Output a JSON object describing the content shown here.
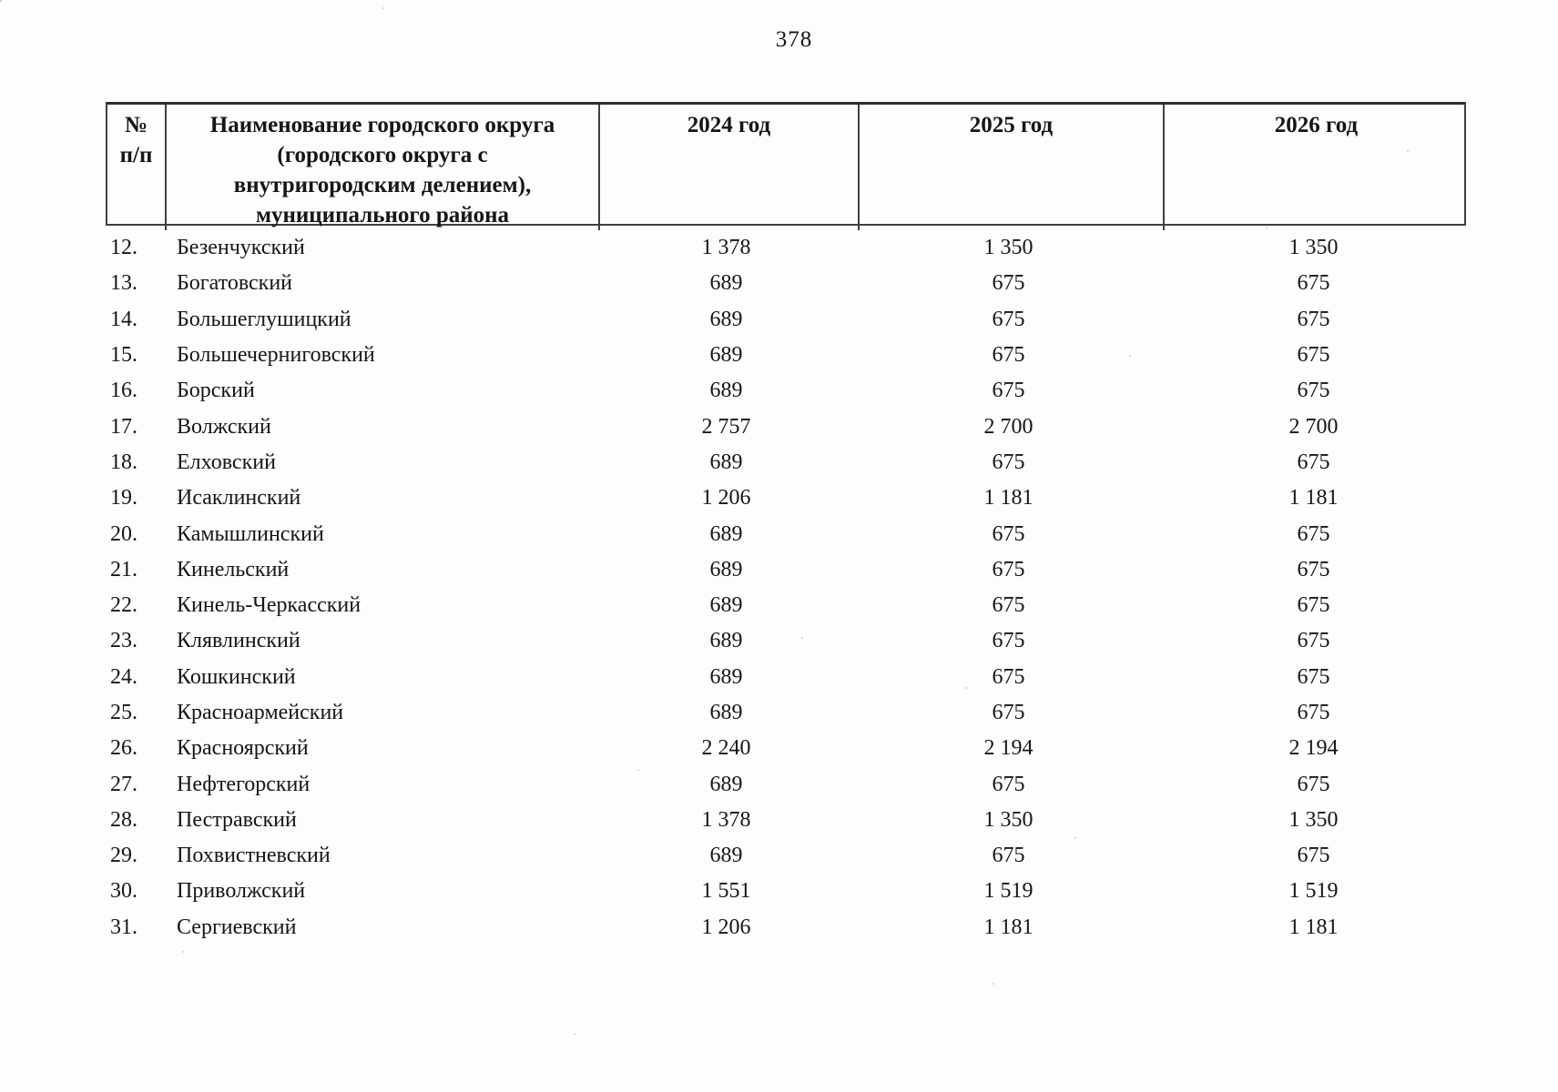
{
  "page": {
    "number": "378"
  },
  "table": {
    "header": {
      "num": "№\nп/п",
      "name": "Наименование городского округа\n(городского округа с\nвнутригородским делением),\nмуниципального района",
      "y2024": "2024 год",
      "y2025": "2025 год",
      "y2026": "2026 год"
    },
    "rows": [
      {
        "num": "12.",
        "name": "Безенчукский",
        "y2024": "1 378",
        "y2025": "1 350",
        "y2026": "1 350"
      },
      {
        "num": "13.",
        "name": "Богатовский",
        "y2024": "689",
        "y2025": "675",
        "y2026": "675"
      },
      {
        "num": "14.",
        "name": "Большеглушицкий",
        "y2024": "689",
        "y2025": "675",
        "y2026": "675"
      },
      {
        "num": "15.",
        "name": "Большечерниговский",
        "y2024": "689",
        "y2025": "675",
        "y2026": "675"
      },
      {
        "num": "16.",
        "name": "Борский",
        "y2024": "689",
        "y2025": "675",
        "y2026": "675"
      },
      {
        "num": "17.",
        "name": "Волжский",
        "y2024": "2 757",
        "y2025": "2 700",
        "y2026": "2 700"
      },
      {
        "num": "18.",
        "name": "Елховский",
        "y2024": "689",
        "y2025": "675",
        "y2026": "675"
      },
      {
        "num": "19.",
        "name": "Исаклинский",
        "y2024": "1 206",
        "y2025": "1 181",
        "y2026": "1 181"
      },
      {
        "num": "20.",
        "name": "Камышлинский",
        "y2024": "689",
        "y2025": "675",
        "y2026": "675"
      },
      {
        "num": "21.",
        "name": "Кинельский",
        "y2024": "689",
        "y2025": "675",
        "y2026": "675"
      },
      {
        "num": "22.",
        "name": "Кинель-Черкасский",
        "y2024": "689",
        "y2025": "675",
        "y2026": "675"
      },
      {
        "num": "23.",
        "name": "Клявлинский",
        "y2024": "689",
        "y2025": "675",
        "y2026": "675"
      },
      {
        "num": "24.",
        "name": "Кошкинский",
        "y2024": "689",
        "y2025": "675",
        "y2026": "675"
      },
      {
        "num": "25.",
        "name": "Красноармейский",
        "y2024": "689",
        "y2025": "675",
        "y2026": "675"
      },
      {
        "num": "26.",
        "name": "Красноярский",
        "y2024": "2 240",
        "y2025": "2 194",
        "y2026": "2 194"
      },
      {
        "num": "27.",
        "name": "Нефтегорский",
        "y2024": "689",
        "y2025": "675",
        "y2026": "675"
      },
      {
        "num": "28.",
        "name": "Пестравский",
        "y2024": "1 378",
        "y2025": "1 350",
        "y2026": "1 350"
      },
      {
        "num": "29.",
        "name": "Похвистневский",
        "y2024": "689",
        "y2025": "675",
        "y2026": "675"
      },
      {
        "num": "30.",
        "name": "Приволжский",
        "y2024": "1 551",
        "y2025": "1 519",
        "y2026": "1 519"
      },
      {
        "num": "31.",
        "name": "Сергиевский",
        "y2024": "1 206",
        "y2025": "1 181",
        "y2026": "1 181"
      }
    ]
  }
}
